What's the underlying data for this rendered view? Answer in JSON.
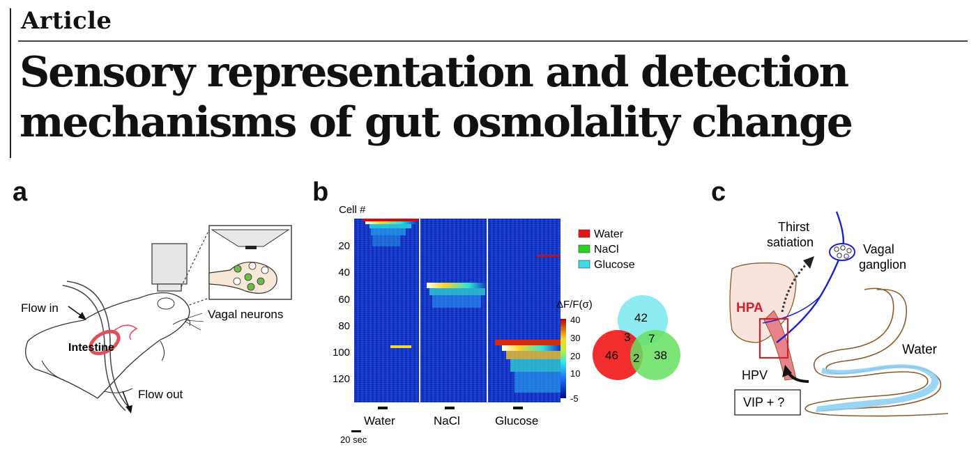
{
  "header": {
    "section_label": "Article",
    "title_line1": "Sensory representation and detection",
    "title_line2": "mechanisms of gut osmolality change"
  },
  "panel_a": {
    "letter": "a",
    "flow_in": "Flow in",
    "intestine": "Intestine",
    "flow_out": "Flow out",
    "vagal_neurons": "Vagal neurons",
    "colors": {
      "intestine": "#e0505a",
      "neuron_green": "#6dbb4a"
    }
  },
  "panel_b": {
    "letter": "b",
    "cell_label": "Cell #",
    "y_ticks": [
      "20",
      "40",
      "60",
      "80",
      "100",
      "120"
    ],
    "stimuli": [
      "Water",
      "NaCl",
      "Glucose"
    ],
    "scale_bar": "20 sec",
    "legend": [
      {
        "label": "Water",
        "color": "#e5161b"
      },
      {
        "label": "NaCl",
        "color": "#27d51f"
      },
      {
        "label": "Glucose",
        "color": "#3fd9e5"
      }
    ],
    "colorbar_title": "ΔF/F(σ)",
    "colorbar_ticks": [
      "40",
      "30",
      "20",
      "10",
      "-5"
    ],
    "venn": {
      "glucose_only": "42",
      "water_only": "46",
      "nacl_only": "38",
      "water_glucose": "3",
      "nacl_glucose": "7",
      "water_nacl": "2",
      "colors": {
        "water": "#f01010",
        "nacl": "#66e060",
        "glucose": "#7fe8ef"
      }
    }
  },
  "panel_c": {
    "letter": "c",
    "thirst": "Thirst",
    "satiation": "satiation",
    "vagal": "Vagal",
    "ganglion": "ganglion",
    "hpa": "HPA",
    "water": "Water",
    "hpv": "HPV",
    "vip": "VIP + ?",
    "colors": {
      "nerve": "#1a1fd6",
      "hpa": "#d4202a",
      "liver": "#f8e4dc",
      "gut": "#8a5a2b",
      "lumen": "#8fd0f2"
    }
  }
}
